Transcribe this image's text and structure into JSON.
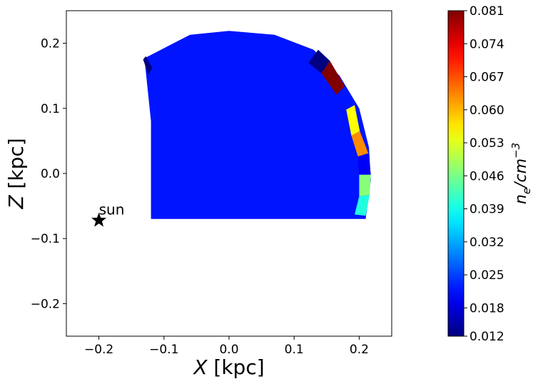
{
  "chart_data": {
    "type": "heatmap",
    "title": "",
    "xlabel_var": "X",
    "xlabel_unit": "[kpc]",
    "ylabel_var": "Z",
    "ylabel_unit": "[kpc]",
    "xlim": [
      -0.25,
      0.25
    ],
    "ylim": [
      -0.25,
      0.25
    ],
    "xticks": [
      -0.2,
      -0.1,
      0.0,
      0.1,
      0.2
    ],
    "xtick_labels": [
      "−0.2",
      "−0.1",
      "0.0",
      "0.1",
      "0.2"
    ],
    "yticks": [
      0.2,
      0.1,
      0.0,
      -0.1,
      -0.2
    ],
    "ytick_labels": [
      "0.2",
      "0.1",
      "0.0",
      "−0.1",
      "−0.2"
    ],
    "grid": false,
    "colormap": "jet",
    "colorbar": {
      "label": "n_e/cm^-3",
      "range": [
        0.012,
        0.081
      ],
      "ticks": [
        0.081,
        0.074,
        0.067,
        0.06,
        0.053,
        0.046,
        0.039,
        0.032,
        0.025,
        0.018,
        0.012
      ],
      "tick_labels": [
        "0.081",
        "0.074",
        "0.067",
        "0.060",
        "0.053",
        "0.046",
        "0.039",
        "0.032",
        "0.025",
        "0.018",
        "0.012"
      ]
    },
    "region": {
      "description_values": "wedge of constant density",
      "value": 0.022,
      "outline_points": [
        [
          -0.12,
          -0.07
        ],
        [
          0.21,
          -0.07
        ],
        [
          0.218,
          -0.01
        ],
        [
          0.215,
          0.04
        ],
        [
          0.2,
          0.1
        ],
        [
          0.17,
          0.15
        ],
        [
          0.13,
          0.19
        ],
        [
          0.07,
          0.213
        ],
        [
          0.0,
          0.219
        ],
        [
          -0.06,
          0.213
        ],
        [
          -0.13,
          0.177
        ],
        [
          -0.12,
          0.08
        ]
      ]
    },
    "edge_cells": [
      {
        "value": 0.012,
        "polygon": [
          [
            -0.132,
            0.175
          ],
          [
            -0.128,
            0.18
          ],
          [
            -0.118,
            0.162
          ],
          [
            -0.124,
            0.152
          ]
        ]
      },
      {
        "value": 0.012,
        "polygon": [
          [
            0.122,
            0.17
          ],
          [
            0.137,
            0.19
          ],
          [
            0.155,
            0.173
          ],
          [
            0.142,
            0.154
          ]
        ]
      },
      {
        "value": 0.081,
        "polygon": [
          [
            0.142,
            0.154
          ],
          [
            0.155,
            0.173
          ],
          [
            0.178,
            0.134
          ],
          [
            0.165,
            0.121
          ]
        ]
      },
      {
        "value": 0.055,
        "polygon": [
          [
            0.18,
            0.098
          ],
          [
            0.193,
            0.105
          ],
          [
            0.201,
            0.065
          ],
          [
            0.188,
            0.058
          ]
        ]
      },
      {
        "value": 0.063,
        "polygon": [
          [
            0.188,
            0.058
          ],
          [
            0.201,
            0.065
          ],
          [
            0.214,
            0.031
          ],
          [
            0.198,
            0.026
          ]
        ]
      },
      {
        "value": 0.02,
        "polygon": [
          [
            0.198,
            0.026
          ],
          [
            0.214,
            0.031
          ],
          [
            0.218,
            -0.002
          ],
          [
            0.2,
            -0.002
          ]
        ]
      },
      {
        "value": 0.047,
        "polygon": [
          [
            0.2,
            -0.002
          ],
          [
            0.218,
            -0.002
          ],
          [
            0.216,
            -0.033
          ],
          [
            0.2,
            -0.035
          ]
        ]
      },
      {
        "value": 0.04,
        "polygon": [
          [
            0.2,
            -0.035
          ],
          [
            0.216,
            -0.033
          ],
          [
            0.21,
            -0.065
          ],
          [
            0.193,
            -0.063
          ]
        ]
      }
    ],
    "annotation": {
      "text": "sun",
      "x": -0.2,
      "y": -0.072,
      "marker": "star"
    }
  }
}
